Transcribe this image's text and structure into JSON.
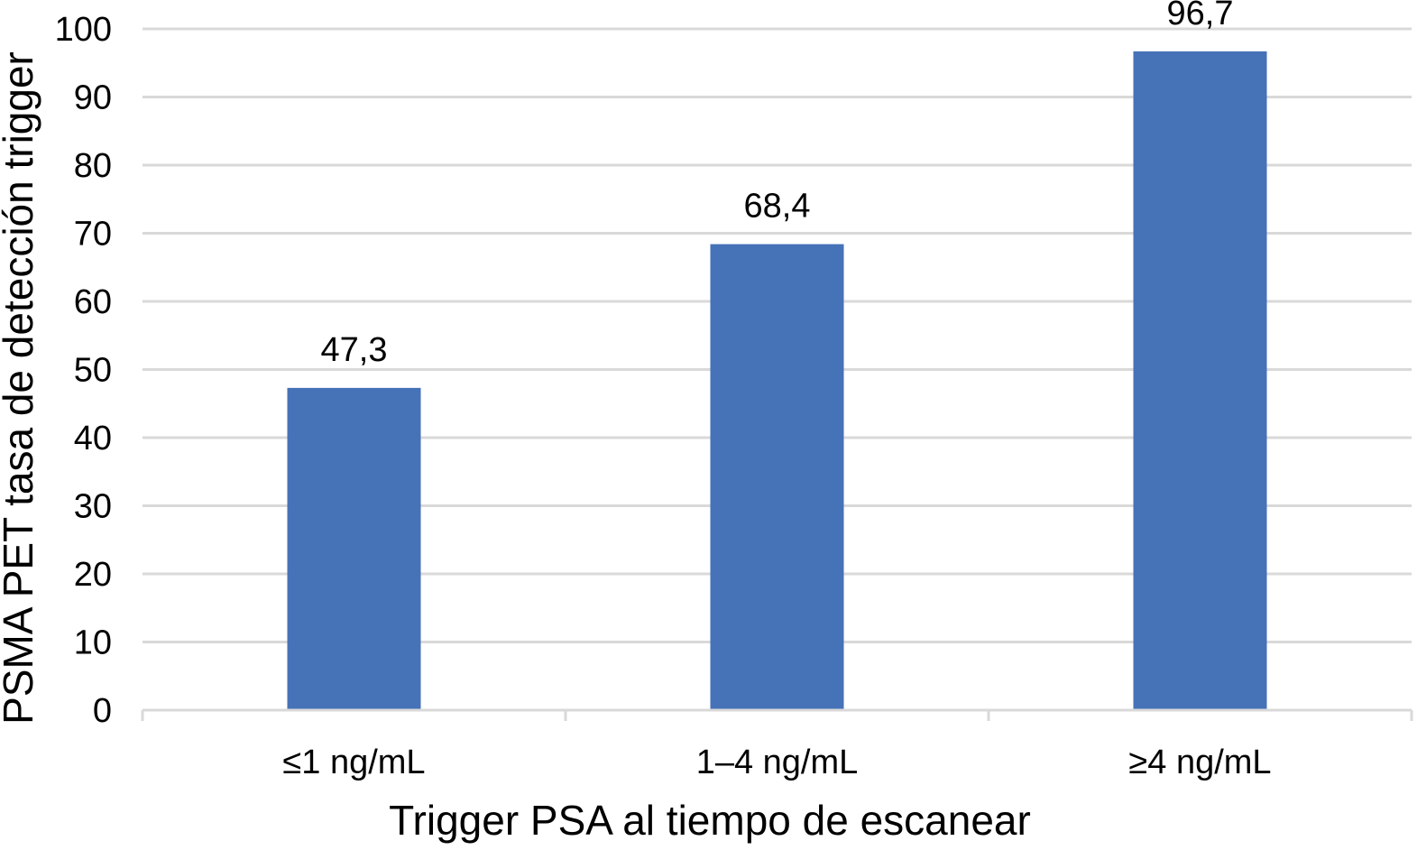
{
  "chart_data": {
    "type": "bar",
    "title": "",
    "xlabel": "Trigger PSA al tiempo de escanear",
    "ylabel": "PSMA PET tasa de detección trigger",
    "categories": [
      "≤1 ng/mL",
      "1–4 ng/mL",
      "≥4 ng/mL"
    ],
    "series": [
      {
        "values": [
          47.3,
          68.4,
          96.7
        ],
        "labels": [
          "47,3",
          "68,4",
          "96,7"
        ],
        "color": "#4672B8"
      }
    ],
    "ylim": [
      0,
      100
    ],
    "yticks": [
      0,
      10,
      20,
      30,
      40,
      50,
      60,
      70,
      80,
      90,
      100
    ],
    "grid": true,
    "legend": "none"
  },
  "colors": {
    "bar": "#4672B8",
    "grid": "#d9d9d9",
    "axis": "#d9d9d9"
  }
}
